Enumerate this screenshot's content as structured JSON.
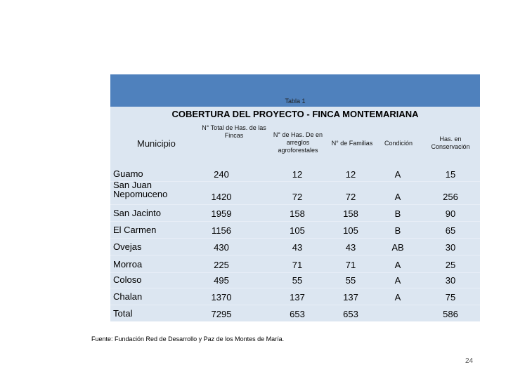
{
  "caption": "Tabla 1",
  "title": "COBERTURA DEL PROYECTO - FINCA MONTEMARIANA",
  "columns": {
    "municipio": "Municipio",
    "total_has": "N° Total de Has. de las Fincas",
    "has_arreglos": "N° de Has. De en arreglos agroforestales",
    "familias": "N° de Familias",
    "condicion": "Condición",
    "conservacion": "Has. en Conservación"
  },
  "rows": [
    {
      "municipio": "Guamo",
      "total_has": "240",
      "has_arreglos": "12",
      "familias": "12",
      "condicion": "A",
      "conservacion": "15"
    },
    {
      "municipio": "San Juan Nepomuceno",
      "total_has": "1420",
      "has_arreglos": "72",
      "familias": "72",
      "condicion": "A",
      "conservacion": "256"
    },
    {
      "municipio": "San Jacinto",
      "total_has": "1959",
      "has_arreglos": "158",
      "familias": "158",
      "condicion": "B",
      "conservacion": "90"
    },
    {
      "municipio": "El Carmen",
      "total_has": "1156",
      "has_arreglos": "105",
      "familias": "105",
      "condicion": "B",
      "conservacion": "65"
    },
    {
      "municipio": "Ovejas",
      "total_has": "430",
      "has_arreglos": "43",
      "familias": "43",
      "condicion": "AB",
      "conservacion": "30"
    },
    {
      "municipio": "Morroa",
      "total_has": "225",
      "has_arreglos": "71",
      "familias": "71",
      "condicion": "A",
      "conservacion": "25"
    },
    {
      "municipio": "Coloso",
      "total_has": "495",
      "has_arreglos": "55",
      "familias": "55",
      "condicion": "A",
      "conservacion": "30"
    },
    {
      "municipio": "Chalan",
      "total_has": "1370",
      "has_arreglos": "137",
      "familias": "137",
      "condicion": "A",
      "conservacion": "75"
    },
    {
      "municipio": "Total",
      "total_has": "7295",
      "has_arreglos": "653",
      "familias": "653",
      "condicion": "",
      "conservacion": "586"
    }
  ],
  "source": "Fuente: Fundación Red de Desarrollo y Paz de los Montes de María.",
  "page_number": "24"
}
